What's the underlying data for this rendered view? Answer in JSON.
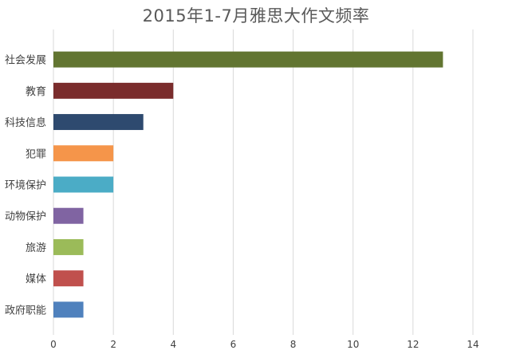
{
  "chart_data": {
    "type": "bar",
    "orientation": "horizontal",
    "title": "2015年1-7月雅思大作文频率",
    "categories": [
      "社会发展",
      "教育",
      "科技信息",
      "犯罪",
      "环境保护",
      "动物保护",
      "旅游",
      "媒体",
      "政府职能"
    ],
    "values": [
      13,
      4,
      3,
      2,
      2,
      1,
      1,
      1,
      1
    ],
    "colors": [
      "#627531",
      "#7a2c2c",
      "#2e4a6f",
      "#f5954a",
      "#4bacc6",
      "#8064a2",
      "#9bbb59",
      "#c0504d",
      "#4f81bd"
    ],
    "xlim": [
      0,
      14
    ],
    "x_ticks": [
      "0",
      "2",
      "4",
      "6",
      "8",
      "10",
      "12",
      "14"
    ],
    "grid": "vertical",
    "legend": "none",
    "xlabel": "",
    "ylabel": ""
  }
}
